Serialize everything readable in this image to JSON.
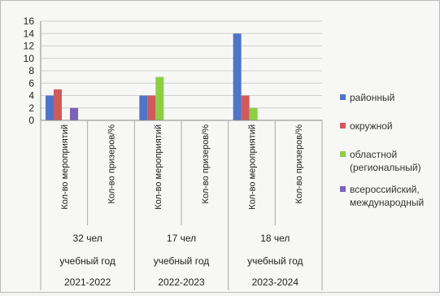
{
  "chart_data": {
    "type": "bar",
    "ylim": [
      0,
      16
    ],
    "yticks": [
      0,
      2,
      4,
      6,
      8,
      10,
      12,
      14,
      16
    ],
    "grid": true,
    "legend_position": "right",
    "categories": [
      "Кол-во мероприятий",
      "Кол-во призеров/%",
      "Кол-во мероприятий",
      "Кол-во призеров/%",
      "Кол-во мероприятий",
      "Кол-во призеров/%"
    ],
    "groups": [
      {
        "count": "32 чел",
        "label": "учебный год",
        "year": "2021-2022"
      },
      {
        "count": "17 чел",
        "label": "учебный год",
        "year": "2022-2023"
      },
      {
        "count": "18 чел",
        "label": "учебный год",
        "year": "2023-2024"
      }
    ],
    "series": [
      {
        "name": "районный",
        "color": "#4f74c9",
        "values": [
          4,
          0,
          4,
          0,
          14,
          0
        ]
      },
      {
        "name": "окружной",
        "color": "#d05a5a",
        "values": [
          5,
          0,
          4,
          0,
          4,
          0
        ]
      },
      {
        "name": "областной (региональный)",
        "name_lines": [
          "областной",
          "(региональный)"
        ],
        "color": "#8ccf45",
        "values": [
          0,
          0,
          7,
          0,
          2,
          0
        ]
      },
      {
        "name": "всероссийский, международный",
        "name_lines": [
          "всероссийский,",
          "международный"
        ],
        "color": "#7b63b8",
        "values": [
          2,
          0,
          0,
          0,
          0,
          0
        ]
      }
    ]
  }
}
